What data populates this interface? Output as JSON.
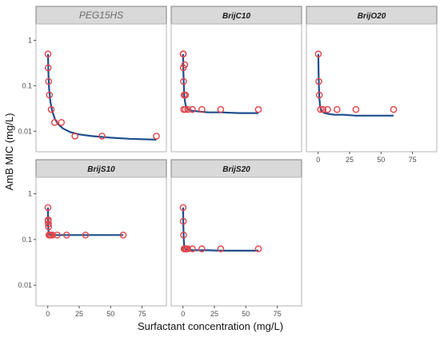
{
  "chart_data": {
    "type": "scatter",
    "xlabel": "Surfactant concentration (mg/L)",
    "ylabel": "AmB MIC (mg/L)",
    "y_scale": "log10",
    "ylim": [
      0.0045,
      1.8
    ],
    "y_ticks": [
      1,
      0.1,
      0.01
    ],
    "y_tick_labels": [
      "1",
      "0.1",
      "0.01"
    ],
    "grid": false,
    "colors": {
      "points": "#e0454a",
      "fit_line": "#1f4e8c",
      "strip_fill": "#d9d9d9",
      "strip_border": "#7f7f7f",
      "panel_border": "#b3b3b3"
    },
    "panels": [
      {
        "name": "PEG15HS",
        "xlim": [
          -3,
          88
        ],
        "x_ticks": [
          0,
          25,
          50,
          75
        ],
        "points": {
          "x": [
            0.17,
            0.33,
            0.67,
            1.33,
            2.7,
            5.4,
            10.8,
            21.6,
            43.2,
            86.4
          ],
          "y": [
            0.5,
            0.25,
            0.125,
            0.0625,
            0.03,
            0.0156,
            0.0156,
            0.0078,
            0.0078,
            0.0078
          ]
        },
        "fit": {
          "x": [
            0.17,
            0.5,
            1,
            2,
            3.5,
            5.5,
            8,
            12,
            18,
            25,
            35,
            50,
            65,
            86.4
          ],
          "y": [
            0.5,
            0.2,
            0.09,
            0.045,
            0.028,
            0.019,
            0.0145,
            0.0115,
            0.0095,
            0.0085,
            0.0078,
            0.0072,
            0.0068,
            0.0065
          ]
        }
      },
      {
        "name": "BrijC10",
        "xlim": [
          -3,
          88
        ],
        "x_ticks": [
          0,
          25,
          50,
          75
        ],
        "points": {
          "x": [
            0.12,
            0.23,
            0.47,
            0.94,
            1.9,
            3.8,
            7.5,
            15,
            30,
            60,
            0.3,
            1.0,
            1.4,
            0.6,
            2.0
          ],
          "y": [
            0.5,
            0.25,
            0.125,
            0.0625,
            0.03,
            0.03,
            0.03,
            0.03,
            0.03,
            0.03,
            0.5,
            0.0625,
            0.29,
            0.03,
            0.0625
          ]
        },
        "fit": {
          "x": [
            0.12,
            0.3,
            0.6,
            1,
            1.5,
            2.2,
            3.2,
            5,
            8,
            13,
            20,
            30,
            45,
            60
          ],
          "y": [
            0.5,
            0.22,
            0.11,
            0.065,
            0.046,
            0.037,
            0.032,
            0.029,
            0.028,
            0.027,
            0.026,
            0.026,
            0.025,
            0.025
          ]
        }
      },
      {
        "name": "BrijO20",
        "xlim": [
          -3,
          88
        ],
        "x_ticks": [
          0,
          25,
          50,
          75
        ],
        "points": {
          "x": [
            0.12,
            0.47,
            0.94,
            1.9,
            3.8,
            7.5,
            15,
            30,
            60
          ],
          "y": [
            0.5,
            0.125,
            0.0625,
            0.03,
            0.03,
            0.03,
            0.03,
            0.03,
            0.03
          ]
        },
        "fit": {
          "x": [
            0.12,
            0.3,
            0.6,
            1,
            1.5,
            2.2,
            3.2,
            5,
            8,
            13,
            20,
            30,
            45,
            60
          ],
          "y": [
            0.5,
            0.2,
            0.09,
            0.05,
            0.036,
            0.03,
            0.027,
            0.025,
            0.024,
            0.023,
            0.023,
            0.022,
            0.022,
            0.022
          ]
        }
      },
      {
        "name": "BrijS10",
        "xlim": [
          -3,
          88
        ],
        "x_ticks": [
          0,
          25,
          50,
          75
        ],
        "points": {
          "x": [
            0.12,
            0.23,
            0.47,
            0.94,
            1.9,
            3.8,
            7.5,
            15,
            30,
            60,
            0.35,
            0.6,
            1.2,
            2.5
          ],
          "y": [
            0.5,
            0.25,
            0.22,
            0.125,
            0.125,
            0.125,
            0.125,
            0.125,
            0.125,
            0.125,
            0.27,
            0.19,
            0.125,
            0.125
          ]
        },
        "fit": {
          "x": [
            0.12,
            0.3,
            0.6,
            1,
            1.5,
            2.5,
            4,
            7,
            12,
            20,
            30,
            45,
            60
          ],
          "y": [
            0.5,
            0.2,
            0.145,
            0.13,
            0.127,
            0.126,
            0.125,
            0.125,
            0.125,
            0.125,
            0.125,
            0.125,
            0.125
          ]
        }
      },
      {
        "name": "BrijS20",
        "xlim": [
          -3,
          88
        ],
        "x_ticks": [
          0,
          25,
          50,
          75
        ],
        "points": {
          "x": [
            0.12,
            0.23,
            0.47,
            0.94,
            1.9,
            3.8,
            7.5,
            15,
            30,
            60,
            1.4,
            2.6
          ],
          "y": [
            0.5,
            0.25,
            0.125,
            0.0625,
            0.0625,
            0.0625,
            0.0625,
            0.0625,
            0.0625,
            0.0625,
            0.0625,
            0.0625
          ]
        },
        "fit": {
          "x": [
            0.12,
            0.3,
            0.6,
            1,
            1.5,
            2.2,
            3.2,
            5,
            8,
            13,
            20,
            30,
            45,
            60
          ],
          "y": [
            0.5,
            0.2,
            0.1,
            0.072,
            0.064,
            0.061,
            0.06,
            0.059,
            0.058,
            0.058,
            0.058,
            0.057,
            0.057,
            0.057
          ]
        }
      }
    ]
  }
}
